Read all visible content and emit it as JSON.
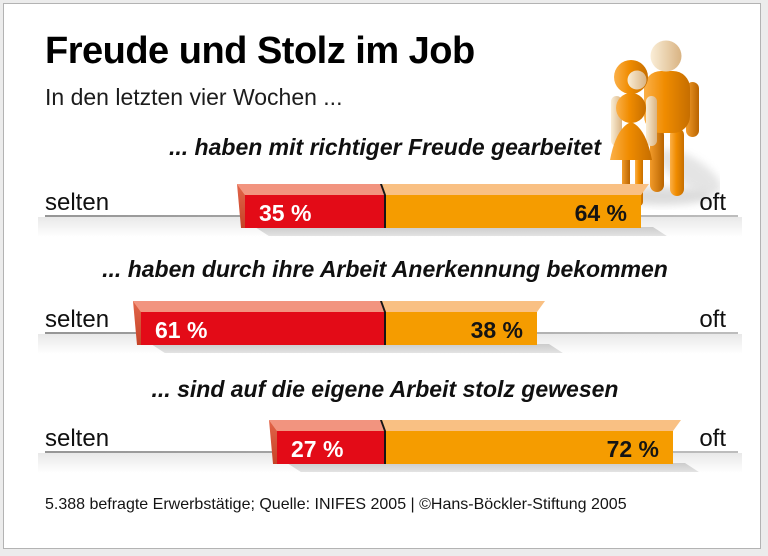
{
  "header": {
    "title": "Freude und Stolz im Job",
    "subtitle": "In den letzten vier Wochen ..."
  },
  "axis": {
    "left_label": "selten",
    "right_label": "oft"
  },
  "footer": {
    "text": "5.388 befragte Erwerbstätige; Quelle: INIFES 2005  | ©Hans-Böckler-Stiftung 2005"
  },
  "chart_data": {
    "type": "bar",
    "variant": "horizontal-diverging-stacked",
    "unit": "percent",
    "title": "Freude und Stolz im Job",
    "subtitle": "In den letzten vier Wochen ...",
    "categories": [
      "... haben mit richtiger Freude gearbeitet",
      "... haben durch ihre Arbeit Anerkennung bekommen",
      "... sind auf die eigene Arbeit stolz gewesen"
    ],
    "series": [
      {
        "name": "selten",
        "color": "#e30b17",
        "values": [
          35,
          61,
          27
        ]
      },
      {
        "name": "oft",
        "color": "#f59c00",
        "values": [
          64,
          38,
          72
        ]
      }
    ],
    "value_labels": [
      [
        "35 %",
        "64 %"
      ],
      [
        "61 %",
        "38 %"
      ],
      [
        "27 %",
        "72 %"
      ]
    ],
    "axis_labels": {
      "left": "selten",
      "right": "oft"
    },
    "legend": "none",
    "source": "5.388 befragte Erwerbstätige; Quelle: INIFES 2005  | ©Hans-Böckler-Stiftung 2005",
    "colors": {
      "red": "#e30b17",
      "red_light": "#f2947f",
      "red_cap_dark": "#c64327",
      "orange": "#f59c00",
      "orange_light": "#f9c083",
      "divider": "#151515",
      "baseline": "#a0a0a0",
      "shadow": "#d0d0d0"
    }
  }
}
